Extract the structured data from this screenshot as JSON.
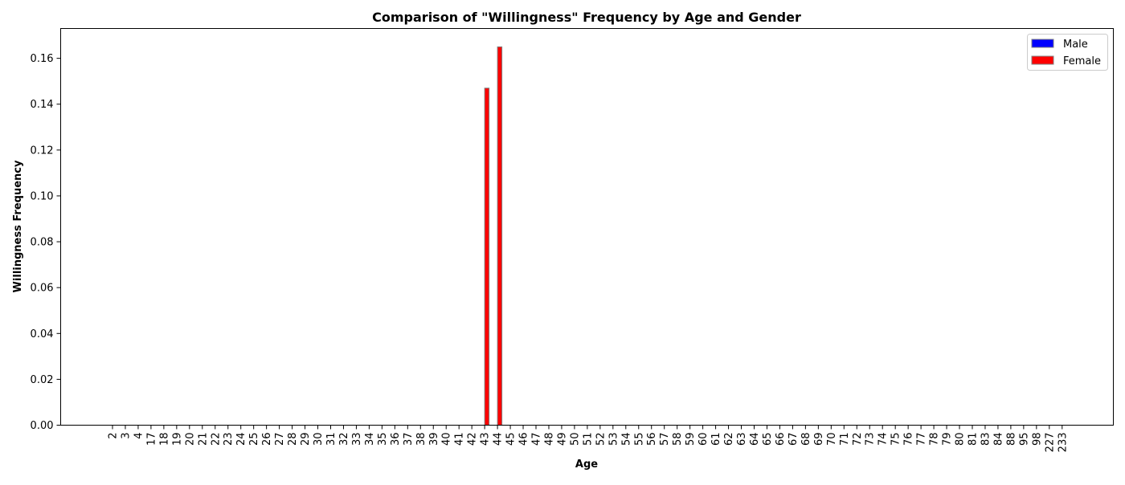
{
  "chart_data": {
    "type": "bar",
    "title": "Comparison of \"Willingness\" Frequency by Age and Gender",
    "xlabel": "Age",
    "ylabel": "Willingness Frequency",
    "ylim": [
      0,
      0.173
    ],
    "yticks": [
      "0.00",
      "0.02",
      "0.04",
      "0.06",
      "0.08",
      "0.10",
      "0.12",
      "0.14",
      "0.16"
    ],
    "grid": false,
    "legend_position": "top-right",
    "categories": [
      "2",
      "3",
      "4",
      "17",
      "18",
      "19",
      "20",
      "21",
      "22",
      "23",
      "24",
      "25",
      "26",
      "27",
      "28",
      "29",
      "30",
      "31",
      "32",
      "33",
      "34",
      "35",
      "36",
      "37",
      "38",
      "39",
      "40",
      "41",
      "42",
      "43",
      "44",
      "45",
      "46",
      "47",
      "48",
      "49",
      "50",
      "51",
      "52",
      "53",
      "54",
      "55",
      "56",
      "57",
      "58",
      "59",
      "60",
      "61",
      "62",
      "63",
      "64",
      "65",
      "66",
      "67",
      "68",
      "69",
      "70",
      "71",
      "72",
      "73",
      "74",
      "75",
      "76",
      "77",
      "78",
      "79",
      "80",
      "81",
      "83",
      "84",
      "88",
      "95",
      "98",
      "227",
      "233"
    ],
    "series": [
      {
        "name": "Male",
        "color": "#0000ff",
        "values": [
          0,
          0,
          0,
          0,
          0,
          0,
          0,
          0,
          0,
          0,
          0,
          0,
          0,
          0,
          0,
          0,
          0,
          0,
          0,
          0,
          0,
          0,
          0,
          0,
          0,
          0,
          0,
          0,
          0,
          0,
          0,
          0,
          0,
          0,
          0,
          0,
          0,
          0,
          0,
          0,
          0,
          0,
          0,
          0,
          0,
          0,
          0,
          0,
          0,
          0,
          0,
          0,
          0,
          0,
          0,
          0,
          0,
          0,
          0,
          0,
          0,
          0,
          0,
          0,
          0,
          0,
          0,
          0,
          0,
          0,
          0,
          0,
          0,
          0,
          0
        ]
      },
      {
        "name": "Female",
        "color": "#ff0000",
        "values": [
          0,
          0,
          0,
          0,
          0,
          0,
          0,
          0,
          0,
          0,
          0,
          0,
          0,
          0,
          0,
          0,
          0,
          0,
          0,
          0,
          0,
          0,
          0,
          0,
          0,
          0,
          0,
          0,
          0,
          0.147,
          0.165,
          0,
          0,
          0,
          0,
          0,
          0,
          0,
          0,
          0,
          0,
          0,
          0,
          0,
          0,
          0,
          0,
          0,
          0,
          0,
          0,
          0,
          0,
          0,
          0,
          0,
          0,
          0,
          0,
          0,
          0,
          0,
          0,
          0,
          0,
          0,
          0,
          0,
          0,
          0,
          0,
          0,
          0,
          0,
          0
        ]
      }
    ]
  }
}
